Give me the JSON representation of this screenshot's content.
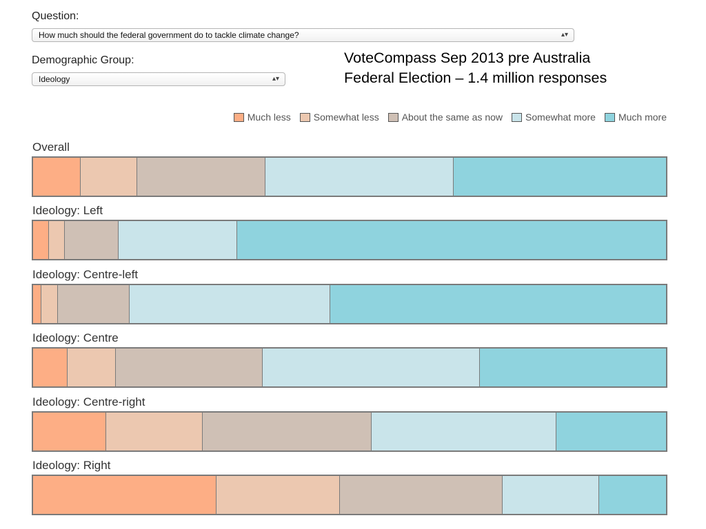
{
  "question": {
    "label": "Question:",
    "selected": "How much should the federal government do to tackle climate change?"
  },
  "demographic": {
    "label": "Demographic Group:",
    "selected": "Ideology"
  },
  "note": {
    "line1": "VoteCompass Sep 2013 pre Australia",
    "line2": "Federal Election – 1.4 million responses"
  },
  "colors": {
    "much_less": "#fdae85",
    "somewhat_less": "#ecc8b0",
    "about_same": "#cfc0b5",
    "somewhat_more": "#c9e4ea",
    "much_more": "#8fd3de"
  },
  "chart_data": {
    "type": "bar",
    "orientation": "horizontal",
    "stacked": "100%",
    "legend_position": "top-right",
    "categories": [
      "Overall",
      "Ideology: Left",
      "Ideology: Centre-left",
      "Ideology: Centre",
      "Ideology: Centre-right",
      "Ideology: Right"
    ],
    "series": [
      {
        "name": "Much less",
        "values": [
          7.5,
          2.5,
          1.3,
          5.4,
          11.5,
          29.0
        ]
      },
      {
        "name": "Somewhat less",
        "values": [
          8.9,
          2.5,
          2.6,
          7.7,
          15.3,
          19.5
        ]
      },
      {
        "name": "About the same as now",
        "values": [
          20.3,
          8.5,
          11.4,
          23.2,
          26.7,
          25.7
        ]
      },
      {
        "name": "Somewhat more",
        "values": [
          29.7,
          18.7,
          31.6,
          34.3,
          29.2,
          15.2
        ]
      },
      {
        "name": "Much more",
        "values": [
          33.6,
          67.8,
          53.1,
          29.4,
          17.3,
          10.6
        ]
      }
    ]
  }
}
